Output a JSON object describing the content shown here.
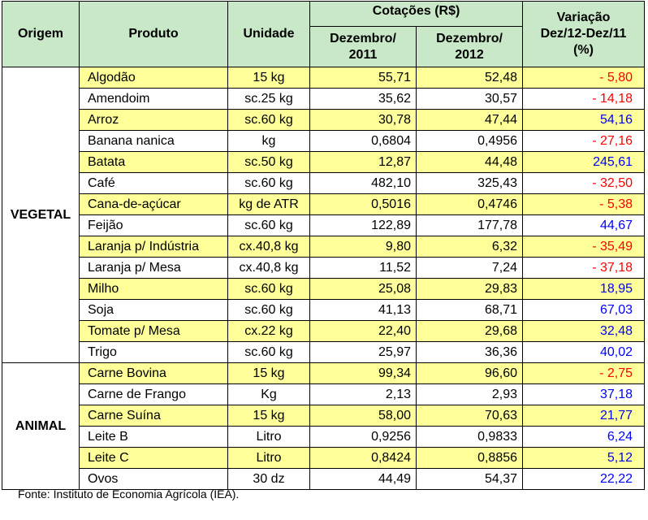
{
  "headers": {
    "origem": "Origem",
    "produto": "Produto",
    "unidade": "Unidade",
    "cotacoes": "Cotações (R$)",
    "dez2011_line1": "Dezembro/",
    "dez2011_line2": "2011",
    "dez2012_line1": "Dezembro/",
    "dez2012_line2": "2012",
    "variacao_line1": "Variação",
    "variacao_line2": "Dez/12-Dez/11",
    "variacao_line3": "(%)"
  },
  "groups": [
    {
      "origin": "VEGETAL",
      "rows": [
        {
          "produto": "Algodão",
          "unidade": "15 kg",
          "dez2011": "55,71",
          "dez2012": "52,48",
          "variacao": "- 5,80",
          "sign": "neg"
        },
        {
          "produto": "Amendoim",
          "unidade": "sc.25 kg",
          "dez2011": "35,62",
          "dez2012": "30,57",
          "variacao": "- 14,18",
          "sign": "neg"
        },
        {
          "produto": "Arroz",
          "unidade": "sc.60 kg",
          "dez2011": "30,78",
          "dez2012": "47,44",
          "variacao": "54,16",
          "sign": "pos"
        },
        {
          "produto": "Banana nanica",
          "unidade": "kg",
          "dez2011": "0,6804",
          "dez2012": "0,4956",
          "variacao": "- 27,16",
          "sign": "neg"
        },
        {
          "produto": "Batata",
          "unidade": "sc.50 kg",
          "dez2011": "12,87",
          "dez2012": "44,48",
          "variacao": "245,61",
          "sign": "pos"
        },
        {
          "produto": "Café",
          "unidade": "sc.60 kg",
          "dez2011": "482,10",
          "dez2012": "325,43",
          "variacao": "- 32,50",
          "sign": "neg"
        },
        {
          "produto": "Cana-de-açúcar",
          "unidade": "kg de ATR",
          "dez2011": "0,5016",
          "dez2012": "0,4746",
          "variacao": "- 5,38",
          "sign": "neg"
        },
        {
          "produto": "Feijão",
          "unidade": "sc.60 kg",
          "dez2011": "122,89",
          "dez2012": "177,78",
          "variacao": "44,67",
          "sign": "pos"
        },
        {
          "produto": "Laranja p/ Indústria",
          "unidade": "cx.40,8 kg",
          "dez2011": "9,80",
          "dez2012": "6,32",
          "variacao": "- 35,49",
          "sign": "neg"
        },
        {
          "produto": "Laranja p/ Mesa",
          "unidade": "cx.40,8 kg",
          "dez2011": "11,52",
          "dez2012": "7,24",
          "variacao": "- 37,18",
          "sign": "neg"
        },
        {
          "produto": "Milho",
          "unidade": "sc.60 kg",
          "dez2011": "25,08",
          "dez2012": "29,83",
          "variacao": "18,95",
          "sign": "pos"
        },
        {
          "produto": "Soja",
          "unidade": "sc.60 kg",
          "dez2011": "41,13",
          "dez2012": "68,71",
          "variacao": "67,03",
          "sign": "pos"
        },
        {
          "produto": "Tomate p/ Mesa",
          "unidade": "cx.22 kg",
          "dez2011": "22,40",
          "dez2012": "29,68",
          "variacao": "32,48",
          "sign": "pos"
        },
        {
          "produto": "Trigo",
          "unidade": "sc.60 kg",
          "dez2011": "25,97",
          "dez2012": "36,36",
          "variacao": "40,02",
          "sign": "pos"
        }
      ]
    },
    {
      "origin": "ANIMAL",
      "rows": [
        {
          "produto": "Carne Bovina",
          "unidade": "15 kg",
          "dez2011": "99,34",
          "dez2012": "96,60",
          "variacao": "- 2,75",
          "sign": "neg"
        },
        {
          "produto": "Carne de Frango",
          "unidade": "Kg",
          "dez2011": "2,13",
          "dez2012": "2,93",
          "variacao": "37,18",
          "sign": "pos"
        },
        {
          "produto": "Carne Suína",
          "unidade": "15 kg",
          "dez2011": "58,00",
          "dez2012": "70,63",
          "variacao": "21,77",
          "sign": "pos"
        },
        {
          "produto": "Leite B",
          "unidade": "Litro",
          "dez2011": "0,9256",
          "dez2012": "0,9833",
          "variacao": "6,24",
          "sign": "pos"
        },
        {
          "produto": "Leite C",
          "unidade": "Litro",
          "dez2011": "0,8424",
          "dez2012": "0,8856",
          "variacao": "5,12",
          "sign": "pos"
        },
        {
          "produto": "Ovos",
          "unidade": "30 dz",
          "dez2011": "44,49",
          "dez2012": "54,37",
          "variacao": "22,22",
          "sign": "pos"
        }
      ]
    }
  ],
  "footer": "Fonte: Instituto de Economia Agrícola (IEA).",
  "colors": {
    "header_bg": "#c8e8c8",
    "highlight_row": "#ffff99",
    "negative": "#ff0000",
    "positive": "#0000ff"
  }
}
